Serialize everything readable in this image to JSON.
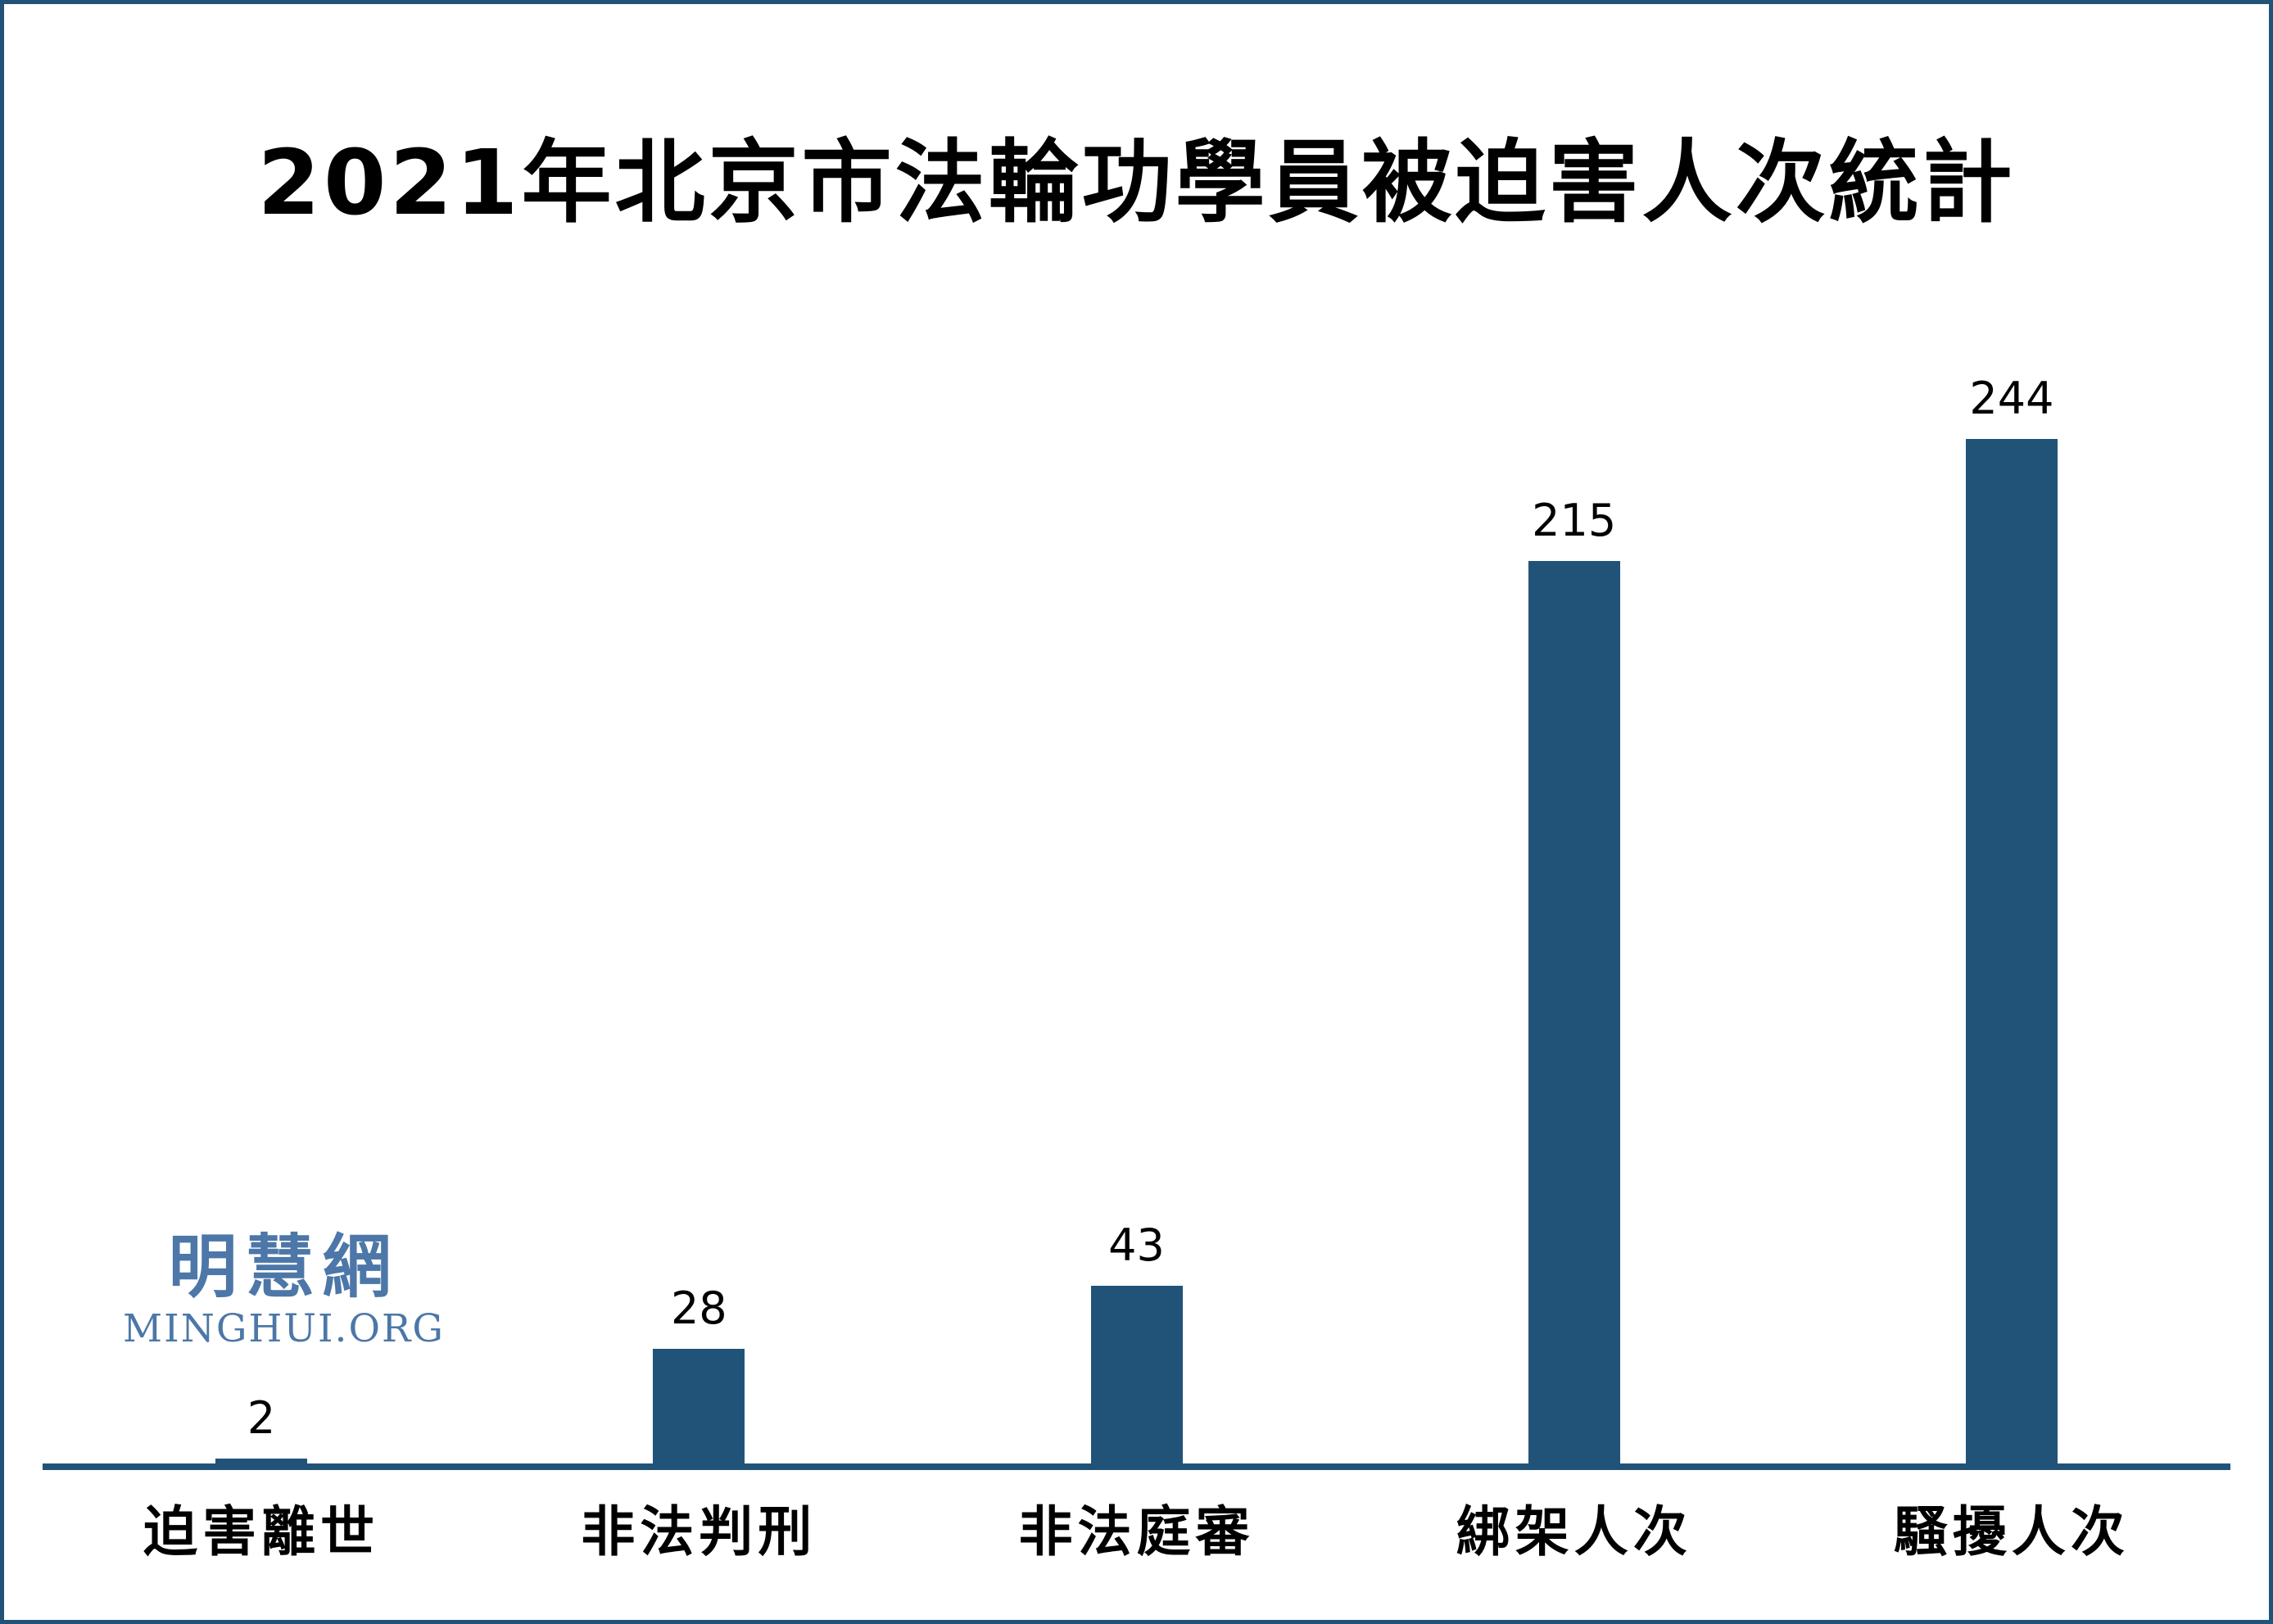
{
  "chart_data": {
    "type": "bar",
    "title": "2021年北京市法輪功學員被迫害人次統計",
    "categories": [
      "迫害離世",
      "非法判刑",
      "非法庭審",
      "綁架人次",
      "騷擾人次"
    ],
    "values": [
      2,
      28,
      43,
      215,
      244
    ],
    "value_labels": [
      "2",
      "28",
      "43",
      "215",
      "244"
    ],
    "xlabel": "",
    "ylabel": "",
    "ylim": [
      0,
      260
    ],
    "grid": false,
    "legend": false,
    "bar_color": "#215379",
    "axis_color": "#215379"
  },
  "logo": {
    "cjk": "明慧網",
    "latin": "MINGHUI.ORG",
    "color": "#4C77A8"
  },
  "colors": {
    "accent_blue": "#215379",
    "frame_border": "#215379",
    "background": "#FFFFFF",
    "text": "#000000"
  }
}
